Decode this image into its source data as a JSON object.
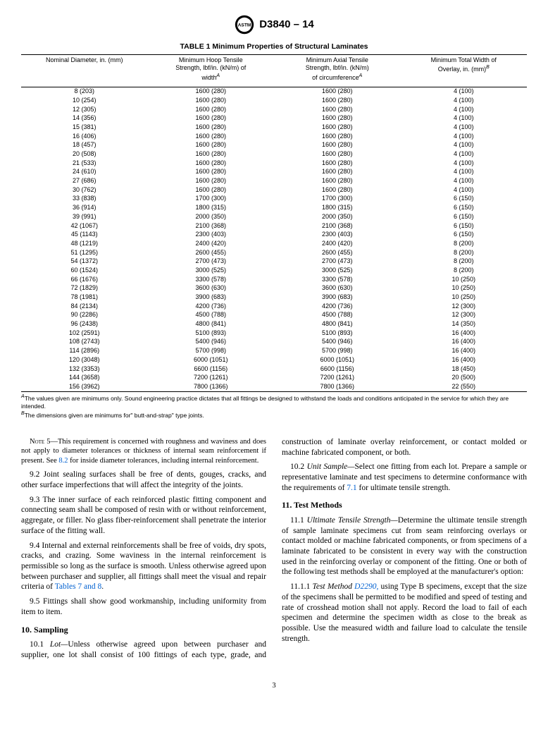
{
  "doc_id": "D3840 – 14",
  "table": {
    "title": "TABLE 1 Minimum Properties of Structural Laminates",
    "col1_l1": "Nominal Diameter, in. (mm)",
    "col2_l1": "Minimum Hoop Tensile",
    "col2_l2": "Strength, lbf/in. (kN/m) of",
    "col2_l3": "width",
    "col3_l1": "Minimum Axial Tensile",
    "col3_l2": "Strength, lbf/in. (kN/m)",
    "col3_l3": "of circumference",
    "col4_l1": "Minimum Total Width of",
    "col4_l2": "Overlay, in. (mm)",
    "rows": [
      [
        "8 (203)",
        "1600 (280)",
        "1600 (280)",
        "4 (100)"
      ],
      [
        "10 (254)",
        "1600 (280)",
        "1600 (280)",
        "4 (100)"
      ],
      [
        "12 (305)",
        "1600 (280)",
        "1600 (280)",
        "4 (100)"
      ],
      [
        "14 (356)",
        "1600 (280)",
        "1600 (280)",
        "4 (100)"
      ],
      [
        "15 (381)",
        "1600 (280)",
        "1600 (280)",
        "4 (100)"
      ],
      [
        "16 (406)",
        "1600 (280)",
        "1600 (280)",
        "4 (100)"
      ],
      [
        "18 (457)",
        "1600 (280)",
        "1600 (280)",
        "4 (100)"
      ],
      [
        "20 (508)",
        "1600 (280)",
        "1600 (280)",
        "4 (100)"
      ],
      [
        "21 (533)",
        "1600 (280)",
        "1600 (280)",
        "4 (100)"
      ],
      [
        "24 (610)",
        "1600 (280)",
        "1600 (280)",
        "4 (100)"
      ],
      [
        "27 (686)",
        "1600 (280)",
        "1600 (280)",
        "4 (100)"
      ],
      [
        "30 (762)",
        "1600 (280)",
        "1600 (280)",
        "4 (100)"
      ],
      [
        "33 (838)",
        "1700 (300)",
        "1700 (300)",
        "6 (150)"
      ],
      [
        "36 (914)",
        "1800 (315)",
        "1800 (315)",
        "6 (150)"
      ],
      [
        "39 (991)",
        "2000 (350)",
        "2000 (350)",
        "6 (150)"
      ],
      [
        "42 (1067)",
        "2100 (368)",
        "2100 (368)",
        "6 (150)"
      ],
      [
        "45 (1143)",
        "2300 (403)",
        "2300 (403)",
        "6 (150)"
      ],
      [
        "48 (1219)",
        "2400 (420)",
        "2400 (420)",
        "8 (200)"
      ],
      [
        "51 (1295)",
        "2600 (455)",
        "2600 (455)",
        "8 (200)"
      ],
      [
        "54 (1372)",
        "2700 (473)",
        "2700 (473)",
        "8 (200)"
      ],
      [
        "60 (1524)",
        "3000 (525)",
        "3000 (525)",
        "8 (200)"
      ],
      [
        "66 (1676)",
        "3300 (578)",
        "3300 (578)",
        "10 (250)"
      ],
      [
        "72 (1829)",
        "3600 (630)",
        "3600 (630)",
        "10 (250)"
      ],
      [
        "78 (1981)",
        "3900 (683)",
        "3900 (683)",
        "10 (250)"
      ],
      [
        "84 (2134)",
        "4200 (736)",
        "4200 (736)",
        "12 (300)"
      ],
      [
        "90 (2286)",
        "4500 (788)",
        "4500 (788)",
        "12 (300)"
      ],
      [
        "96 (2438)",
        "4800 (841)",
        "4800 (841)",
        "14 (350)"
      ],
      [
        "102 (2591)",
        "5100 (893)",
        "5100 (893)",
        "16 (400)"
      ],
      [
        "108 (2743)",
        "5400 (946)",
        "5400 (946)",
        "16 (400)"
      ],
      [
        "114 (2896)",
        "5700 (998)",
        "5700 (998)",
        "16 (400)"
      ],
      [
        "120 (3048)",
        "6000 (1051)",
        "6000 (1051)",
        "16 (400)"
      ],
      [
        "132 (3353)",
        "6600 (1156)",
        "6600 (1156)",
        "18 (450)"
      ],
      [
        "144 (3658)",
        "7200 (1261)",
        "7200 (1261)",
        "20 (500)"
      ],
      [
        "156 (3962)",
        "7800 (1366)",
        "7800 (1366)",
        "22 (550)"
      ]
    ],
    "footA_sup": "A",
    "footA": "The values given are minimums only. Sound engineering practice dictates that all fittings be designed to withstand the loads and conditions anticipated in the service for which they are intended.",
    "footB_sup": "B",
    "footB": "The dimensions given are minimums for\" butt-and-strap\" type joints."
  },
  "body": {
    "note5_label": "Note 5—",
    "note5": "This requirement is concerned with roughness and waviness and does not apply to diameter tolerances or thickness of internal seam reinforcement if present. See ",
    "note5_ref": "8.2",
    "note5_tail": " for inside diameter tolerances, including internal reinforcement.",
    "p92": "9.2 Joint sealing surfaces shall be free of dents, gouges, cracks, and other surface imperfections that will affect the integrity of the joints.",
    "p93": "9.3 The inner surface of each reinforced plastic fitting component and connecting seam shall be composed of resin with or without reinforcement, aggregate, or filler. No glass fiber-reinforcement shall penetrate the interior surface of the fitting wall.",
    "p94_a": "9.4 Internal and external reinforcements shall be free of voids, dry spots, cracks, and crazing. Some waviness in the internal reinforcement is permissible so long as the surface is smooth. Unless otherwise agreed upon between purchaser and supplier, all fittings shall meet the visual and repair criteria of ",
    "p94_ref": "Tables 7 and 8",
    "p94_b": ".",
    "p95": "9.5 Fittings shall show good workmanship, including uniformity from item to item.",
    "h10": "10. Sampling",
    "p101_a": "10.1 ",
    "p101_it": "Lot—",
    "p101_b": "Unless otherwise agreed upon between purchaser and supplier, one lot shall consist of 100 fittings of each type, grade, and construction of laminate overlay reinforcement, or contact molded or machine fabricated component, or both.",
    "p102_a": "10.2 ",
    "p102_it": "Unit Sample—",
    "p102_b": "Select one fitting from each lot. Prepare a sample or representative laminate and test specimens to determine conformance with the requirements of ",
    "p102_ref": "7.1",
    "p102_c": " for ultimate tensile strength.",
    "h11": "11. Test Methods",
    "p111_a": "11.1 ",
    "p111_it": "Ultimate Tensile Strength—",
    "p111_b": "Determine the ultimate tensile strength of sample laminate specimens cut from seam reinforcing overlays or contact molded or machine fabricated components, or from specimens of a laminate fabricated to be consistent in every way with the construction used in the reinforcing overlay or component of the fitting. One or both of the following test methods shall be employed at the manufacturer's option:",
    "p1111_a": "11.1.1 ",
    "p1111_it": "Test Method ",
    "p1111_ref": "D2290,",
    "p1111_b": " using Type B specimens, except that the size of the specimens shall be permitted to be modified and speed of testing and rate of crosshead motion shall not apply. Record the load to fail of each specimen and determine the specimen width as close to the break as possible. Use the measured width and failure load to calculate the tensile strength."
  },
  "page_number": "3"
}
